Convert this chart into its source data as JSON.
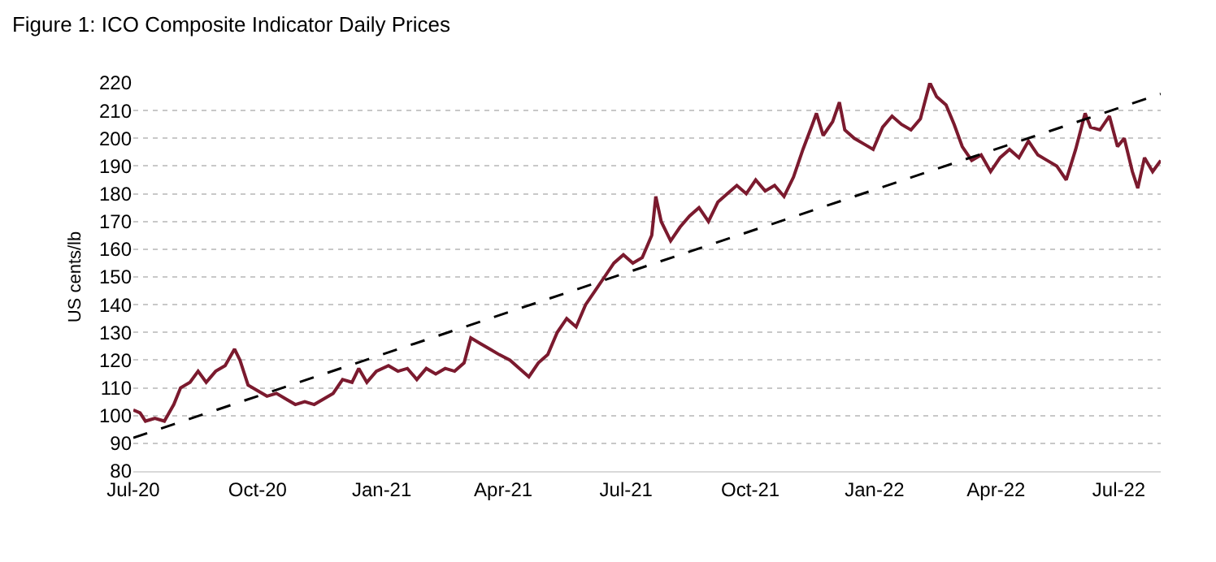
{
  "chart_data": {
    "type": "line",
    "title": "Figure 1: ICO Composite Indicator Daily Prices",
    "ylabel": "US cents/lb",
    "xlim": [
      "2020-07-01",
      "2022-08-01"
    ],
    "xticks": [
      {
        "value": "2020-07-01",
        "label": "Jul-20"
      },
      {
        "value": "2020-10-01",
        "label": "Oct-20"
      },
      {
        "value": "2021-01-01",
        "label": "Jan-21"
      },
      {
        "value": "2021-04-01",
        "label": "Apr-21"
      },
      {
        "value": "2021-07-01",
        "label": "Jul-21"
      },
      {
        "value": "2021-10-01",
        "label": "Oct-21"
      },
      {
        "value": "2022-01-01",
        "label": "Jan-22"
      },
      {
        "value": "2022-04-01",
        "label": "Apr-22"
      },
      {
        "value": "2022-07-01",
        "label": "Jul-22"
      }
    ],
    "ylim": [
      80,
      220
    ],
    "yticks": [
      80,
      90,
      100,
      110,
      120,
      130,
      140,
      150,
      160,
      170,
      180,
      190,
      200,
      210,
      220
    ],
    "grid": "y",
    "series": [
      {
        "color": "#7b1a2e",
        "line_style": "solid",
        "x": [
          "2020-07-01",
          "2020-07-06",
          "2020-07-10",
          "2020-07-17",
          "2020-07-24",
          "2020-07-31",
          "2020-08-05",
          "2020-08-12",
          "2020-08-18",
          "2020-08-24",
          "2020-08-31",
          "2020-09-07",
          "2020-09-14",
          "2020-09-18",
          "2020-09-24",
          "2020-10-01",
          "2020-10-08",
          "2020-10-15",
          "2020-10-22",
          "2020-10-29",
          "2020-11-05",
          "2020-11-12",
          "2020-11-19",
          "2020-11-26",
          "2020-12-03",
          "2020-12-10",
          "2020-12-15",
          "2020-12-21",
          "2020-12-28",
          "2021-01-06",
          "2021-01-13",
          "2021-01-20",
          "2021-01-27",
          "2021-02-03",
          "2021-02-10",
          "2021-02-17",
          "2021-02-24",
          "2021-03-03",
          "2021-03-08",
          "2021-03-15",
          "2021-03-22",
          "2021-03-29",
          "2021-04-06",
          "2021-04-13",
          "2021-04-20",
          "2021-04-27",
          "2021-05-04",
          "2021-05-11",
          "2021-05-18",
          "2021-05-25",
          "2021-06-01",
          "2021-06-08",
          "2021-06-15",
          "2021-06-22",
          "2021-06-29",
          "2021-07-06",
          "2021-07-13",
          "2021-07-20",
          "2021-07-23",
          "2021-07-27",
          "2021-08-03",
          "2021-08-10",
          "2021-08-17",
          "2021-08-24",
          "2021-08-31",
          "2021-09-07",
          "2021-09-14",
          "2021-09-21",
          "2021-09-28",
          "2021-10-05",
          "2021-10-12",
          "2021-10-19",
          "2021-10-26",
          "2021-11-02",
          "2021-11-09",
          "2021-11-16",
          "2021-11-19",
          "2021-11-24",
          "2021-12-01",
          "2021-12-06",
          "2021-12-10",
          "2021-12-17",
          "2021-12-24",
          "2021-12-31",
          "2022-01-07",
          "2022-01-14",
          "2022-01-21",
          "2022-01-28",
          "2022-02-04",
          "2022-02-11",
          "2022-02-16",
          "2022-02-23",
          "2022-03-01",
          "2022-03-07",
          "2022-03-14",
          "2022-03-21",
          "2022-03-28",
          "2022-04-04",
          "2022-04-11",
          "2022-04-18",
          "2022-04-25",
          "2022-05-02",
          "2022-05-09",
          "2022-05-16",
          "2022-05-23",
          "2022-05-30",
          "2022-06-06",
          "2022-06-10",
          "2022-06-17",
          "2022-06-24",
          "2022-06-30",
          "2022-07-05",
          "2022-07-11",
          "2022-07-15",
          "2022-07-20",
          "2022-07-26",
          "2022-08-01"
        ],
        "values": [
          102,
          101,
          98,
          99,
          98,
          104,
          110,
          112,
          116,
          112,
          116,
          118,
          124,
          120,
          111,
          109,
          107,
          108,
          106,
          104,
          105,
          104,
          106,
          108,
          113,
          112,
          117,
          112,
          116,
          118,
          116,
          117,
          113,
          117,
          115,
          117,
          116,
          119,
          128,
          126,
          124,
          122,
          120,
          117,
          114,
          119,
          122,
          130,
          135,
          132,
          140,
          145,
          150,
          155,
          158,
          155,
          157,
          165,
          179,
          170,
          163,
          168,
          172,
          175,
          170,
          177,
          180,
          183,
          180,
          185,
          181,
          183,
          179,
          186,
          196,
          205,
          209,
          201,
          206,
          213,
          203,
          200,
          198,
          196,
          204,
          208,
          205,
          203,
          207,
          220,
          215,
          212,
          205,
          197,
          192,
          194,
          188,
          193,
          196,
          193,
          199,
          194,
          192,
          190,
          185,
          196,
          209,
          204,
          203,
          208,
          197,
          200,
          188,
          182,
          193,
          188,
          192
        ]
      },
      {
        "color": "#000000",
        "line_style": "dashed",
        "x": [
          "2020-07-01",
          "2022-08-01"
        ],
        "values": [
          92,
          216
        ]
      }
    ]
  }
}
